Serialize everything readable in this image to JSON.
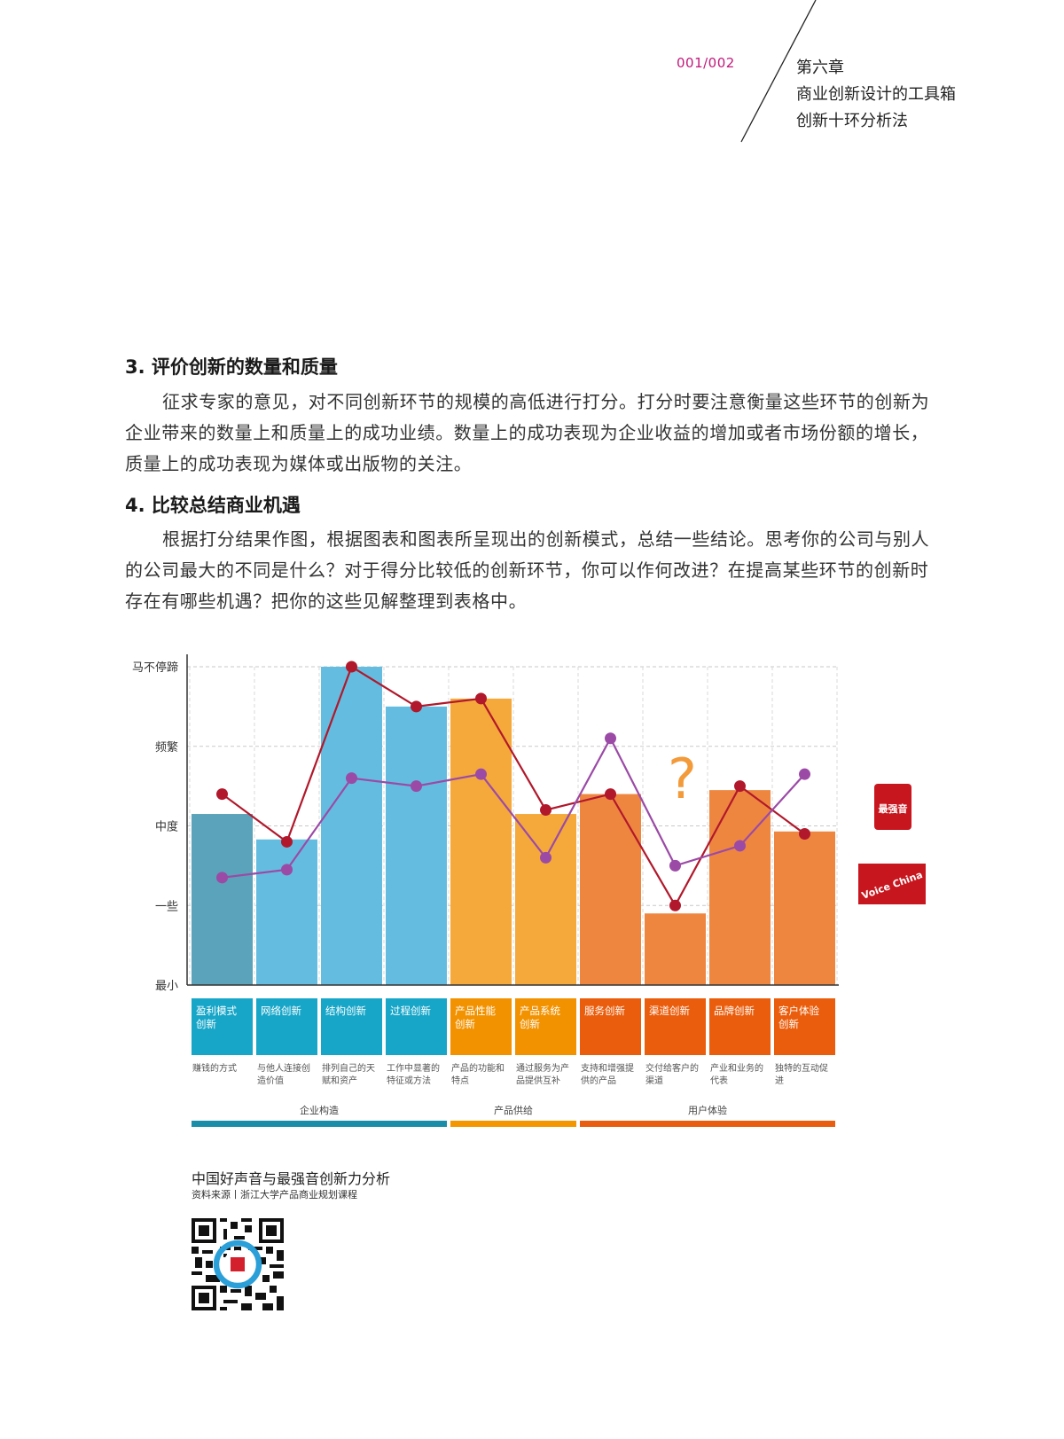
{
  "header": {
    "page_number": "001/002",
    "chapter_lines": [
      "第六章",
      "商业创新设计的工具箱",
      "创新十环分析法"
    ]
  },
  "sections": [
    {
      "heading": "3. 评价创新的数量和质量",
      "paragraph": "征求专家的意见，对不同创新环节的规模的高低进行打分。打分时要注意衡量这些环节的创新为企业带来的数量上和质量上的成功业绩。数量上的成功表现为企业收益的增加或者市场份额的增长，质量上的成功表现为媒体或出版物的关注。"
    },
    {
      "heading": "4. 比较总结商业机遇",
      "paragraph": "根据打分结果作图，根据图表和图表所呈现出的创新模式，总结一些结论。思考你的公司与别人的公司最大的不同是什么？对于得分比较低的创新环节，你可以作何改进？在提高某些环节的创新时存在有哪些机遇？把你的这些见解整理到表格中。"
    }
  ],
  "chart_data": {
    "type": "bar",
    "title": "中国好声音与最强音创新力分析",
    "source": "资料来源丨浙江大学产品商业规划课程",
    "y_levels": [
      "最小",
      "一些",
      "中度",
      "频繁",
      "马不停蹄"
    ],
    "ylim": [
      0,
      4
    ],
    "grid": true,
    "categories": [
      "盈利模式创新",
      "网络创新",
      "结构创新",
      "过程创新",
      "产品性能创新",
      "产品系统创新",
      "服务创新",
      "渠道创新",
      "品牌创新",
      "客户体验创新"
    ],
    "category_labels": [
      [
        "盈利模式",
        "创新"
      ],
      [
        "网络创新"
      ],
      [
        "结构创新"
      ],
      [
        "过程创新"
      ],
      [
        "产品性能",
        "创新"
      ],
      [
        "产品系统",
        "创新"
      ],
      [
        "服务创新"
      ],
      [
        "渠道创新"
      ],
      [
        "品牌创新"
      ],
      [
        "客户体验",
        "创新"
      ]
    ],
    "descriptions": [
      [
        "赚钱的方式"
      ],
      [
        "与他人连接创",
        "造价值"
      ],
      [
        "排列自己的天",
        "赋和资产"
      ],
      [
        "工作中显著的",
        "特征或方法"
      ],
      [
        "产品的功能和",
        "特点"
      ],
      [
        "通过服务为产",
        "品提供互补"
      ],
      [
        "支持和增强提",
        "供的产品"
      ],
      [
        "交付给客户的",
        "渠道"
      ],
      [
        "产业和业务的",
        "代表"
      ],
      [
        "独特的互动促",
        "进"
      ]
    ],
    "bar_values": [
      2.15,
      1.83,
      4.0,
      3.5,
      3.6,
      2.15,
      2.4,
      0.9,
      2.45,
      1.93
    ],
    "series": [
      {
        "values": [
          2.4,
          1.8,
          4.0,
          3.5,
          3.6,
          2.2,
          2.4,
          1.0,
          2.5,
          1.9
        ],
        "color": "#b1182b"
      },
      {
        "values": [
          1.35,
          1.45,
          2.6,
          2.5,
          2.65,
          1.6,
          3.1,
          1.5,
          1.75,
          2.65
        ],
        "color": "#9b4aa6"
      }
    ],
    "bar_colors": [
      "#5ba3ba",
      "#64bde0",
      "#64bde0",
      "#64bde0",
      "#f5a93b",
      "#f5a93b",
      "#ee8640",
      "#ee8640",
      "#ee8640",
      "#ee8640"
    ],
    "label_colors": [
      "#17a6c8",
      "#17a6c8",
      "#17a6c8",
      "#17a6c8",
      "#f29200",
      "#f29200",
      "#ea5d0c",
      "#ea5d0c",
      "#ea5d0c",
      "#ea5d0c"
    ],
    "groups": [
      {
        "label": "企业构造",
        "color": "#1a8ea8"
      },
      {
        "label": "产品供给",
        "color": "#f39600"
      },
      {
        "label": "用户体验",
        "color": "#e85d10"
      }
    ],
    "annotation": "?"
  },
  "logos": [
    {
      "name": "最强音",
      "text": "最强音"
    },
    {
      "name": "The Voice of China",
      "text": "Voice China"
    }
  ]
}
